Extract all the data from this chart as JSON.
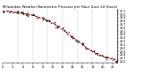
{
  "title": "Milwaukee Weather Barometric Pressure per Hour (Last 24 Hours)",
  "hours": [
    0,
    1,
    2,
    3,
    4,
    5,
    6,
    7,
    8,
    9,
    10,
    11,
    12,
    13,
    14,
    15,
    16,
    17,
    18,
    19,
    20,
    21,
    22,
    23
  ],
  "pressure": [
    30.07,
    30.09,
    30.08,
    30.05,
    30.03,
    30.0,
    29.97,
    29.93,
    29.87,
    29.82,
    29.74,
    29.65,
    29.54,
    29.44,
    29.33,
    29.22,
    29.1,
    28.99,
    28.9,
    28.82,
    28.76,
    28.71,
    28.67,
    28.63
  ],
  "line_color": "#dd0000",
  "marker_color": "#111111",
  "grid_color": "#999999",
  "bg_color": "#ffffff",
  "ylim": [
    28.55,
    30.15
  ],
  "xlim": [
    0,
    23
  ],
  "vgrid_positions": [
    3,
    6,
    9,
    12,
    15,
    18,
    21
  ],
  "xlabel_hours": [
    0,
    2,
    4,
    6,
    8,
    10,
    12,
    14,
    16,
    18,
    20,
    22
  ],
  "ylabel_values": [
    30.1,
    30.0,
    29.9,
    29.8,
    29.7,
    29.6,
    29.5,
    29.4,
    29.3,
    29.2,
    29.1,
    29.0,
    28.9,
    28.8,
    28.7,
    28.6
  ],
  "title_fontsize": 2.8,
  "tick_fontsize": 2.5,
  "ytick_fontsize": 2.3
}
